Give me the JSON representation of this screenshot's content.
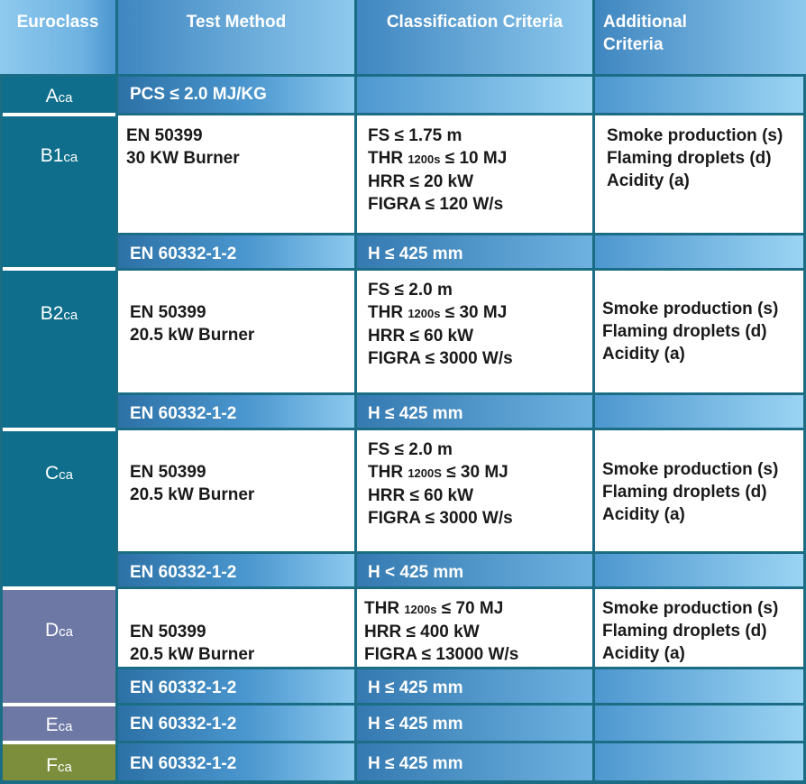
{
  "headers": {
    "euroclass": "Euroclass",
    "test_method": "Test Method",
    "classification": "Classification Criteria",
    "additional_1": "Additional",
    "additional_2": "Criteria"
  },
  "classes": {
    "a": {
      "letter": "A",
      "suffix": "ca"
    },
    "b1": {
      "letter": "B1",
      "suffix": "ca"
    },
    "b2": {
      "letter": "B2",
      "suffix": "ca"
    },
    "c": {
      "letter": "C",
      "suffix": "ca"
    },
    "d": {
      "letter": "D",
      "suffix": "ca"
    },
    "e": {
      "letter": "E",
      "suffix": "ca"
    },
    "f": {
      "letter": "F",
      "suffix": "ca"
    }
  },
  "rows": {
    "a": {
      "method": "PCS ≤ 2.0 MJ/KG"
    },
    "b1": {
      "method": [
        "EN 50399",
        "30 KW Burner"
      ],
      "criteria": {
        "fs": "FS ≤ 1.75 m",
        "thr_pre": "THR ",
        "thr_sub": "1200s",
        "thr_post": " ≤ 10 MJ",
        "hrr": "HRR ≤ 20 kW",
        "figra": "FIGRA ≤ 120 W/s"
      },
      "additional": [
        "Smoke production (s)",
        "Flaming droplets (d)",
        "Acidity (a)"
      ],
      "sub_method": "EN 60332-1-2",
      "sub_criteria": "H ≤ 425 mm"
    },
    "b2": {
      "method": [
        "EN 50399",
        "20.5 kW Burner"
      ],
      "criteria": {
        "fs": "FS ≤ 2.0 m",
        "thr_pre": "THR ",
        "thr_sub": "1200s",
        "thr_post": " ≤ 30 MJ",
        "hrr": "HRR ≤ 60 kW",
        "figra": "FIGRA ≤ 3000 W/s"
      },
      "additional": [
        "Smoke production (s)",
        "Flaming droplets (d)",
        "Acidity (a)"
      ],
      "sub_method": "EN 60332-1-2",
      "sub_criteria": "H ≤ 425 mm"
    },
    "c": {
      "method": [
        "EN 50399",
        "20.5 kW Burner"
      ],
      "criteria": {
        "fs": "FS ≤ 2.0 m",
        "thr_pre": "THR ",
        "thr_sub": "1200S",
        "thr_post": " ≤ 30 MJ",
        "hrr": "HRR ≤ 60 kW",
        "figra": "FIGRA ≤ 3000 W/s"
      },
      "additional": [
        "Smoke production (s)",
        "Flaming droplets (d)",
        "Acidity (a)"
      ],
      "sub_method": "EN 60332-1-2",
      "sub_criteria": "H < 425 mm"
    },
    "d": {
      "method": [
        "EN 50399",
        "20.5 kW Burner"
      ],
      "criteria": {
        "thr_pre": "THR ",
        "thr_sub": "1200s",
        "thr_post": " ≤ 70 MJ",
        "hrr": "HRR ≤ 400 kW",
        "figra": "FIGRA ≤ 13000 W/s"
      },
      "additional": [
        "Smoke production (s)",
        "Flaming droplets (d)",
        "Acidity (a)"
      ],
      "sub_method": "EN 60332-1-2",
      "sub_criteria": "H ≤ 425 mm"
    },
    "e": {
      "method": "EN 60332-1-2",
      "criteria": "H ≤ 425 mm"
    },
    "f": {
      "method": "EN 60332-1-2",
      "criteria": "H ≤ 425 mm"
    }
  },
  "colors": {
    "border": "#1b6d85",
    "class_teal": "#0e6e8b",
    "class_purple": "#6d78a5",
    "class_olive": "#7c8d3c"
  }
}
